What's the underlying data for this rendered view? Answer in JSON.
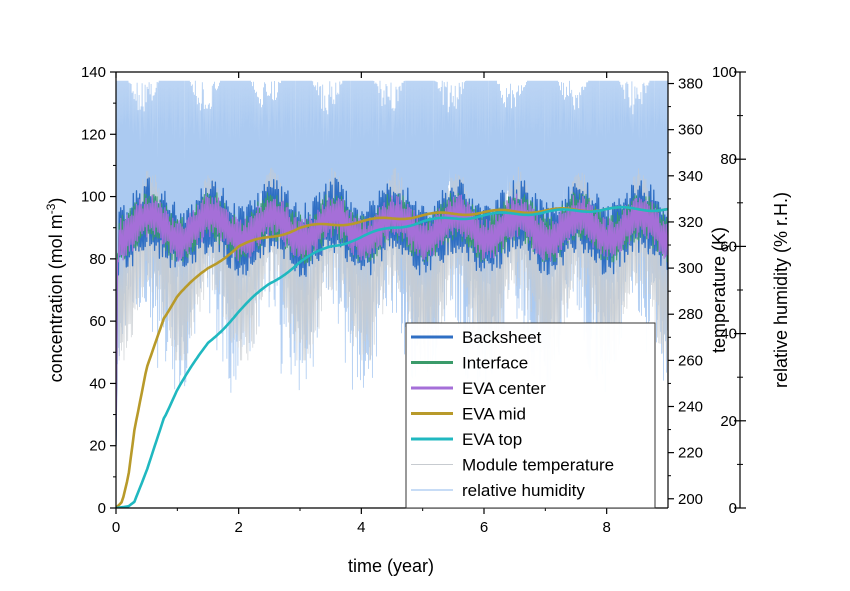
{
  "chart_data": {
    "type": "line",
    "xlabel": "time (year)",
    "ylabel": "concentration (mol m",
    "ylabel_sup": "-3",
    "ylabel_close": ")",
    "y2label": "temperature (K)",
    "y3label": "relative humidity (% r.H.)",
    "xlim": [
      0,
      9
    ],
    "ylim": [
      0,
      140
    ],
    "y2lim": [
      196,
      385
    ],
    "y3lim": [
      0,
      100
    ],
    "x_ticks": [
      "0",
      "2",
      "4",
      "6",
      "8"
    ],
    "y_ticks": [
      "0",
      "20",
      "40",
      "60",
      "80",
      "100",
      "120",
      "140"
    ],
    "y2_ticks": [
      "200",
      "220",
      "240",
      "260",
      "280",
      "300",
      "320",
      "340",
      "360",
      "380"
    ],
    "y3_ticks": [
      "0",
      "20",
      "40",
      "60",
      "80",
      "100"
    ],
    "legend_position": "bottom-right",
    "series": [
      {
        "name": "Backsheet",
        "color": "#2f6fc4",
        "axis": "concentration",
        "mean": [
          [
            0,
            90
          ],
          [
            9,
            90
          ]
        ],
        "amplitude": 12
      },
      {
        "name": "Interface",
        "color": "#3a9b6a",
        "axis": "concentration",
        "mean": [
          [
            0,
            90
          ],
          [
            9,
            90
          ]
        ],
        "amplitude": 8
      },
      {
        "name": "EVA center",
        "color": "#a56fd8",
        "axis": "concentration",
        "mean": [
          [
            0,
            90
          ],
          [
            9,
            90
          ]
        ],
        "amplitude": 7
      },
      {
        "name": "EVA mid",
        "color": "#b89a2a",
        "axis": "concentration",
        "x": [
          0,
          0.1,
          0.2,
          0.3,
          0.5,
          0.8,
          1.0,
          1.5,
          2.0,
          2.5,
          3.0,
          3.5,
          4.0,
          4.5,
          5.0,
          6.0,
          7.0,
          8.0,
          9.0
        ],
        "values": [
          0,
          2,
          10,
          25,
          45,
          62,
          68,
          77,
          84,
          87,
          90,
          91,
          92,
          93,
          94,
          95,
          95.5,
          96,
          96
        ]
      },
      {
        "name": "EVA top",
        "color": "#20b8c0",
        "axis": "concentration",
        "x": [
          0,
          0.2,
          0.3,
          0.5,
          0.8,
          1.0,
          1.5,
          2.0,
          2.5,
          3.0,
          3.5,
          4.0,
          4.5,
          5.0,
          6.0,
          7.0,
          8.0,
          9.0
        ],
        "values": [
          0,
          0.5,
          2,
          12,
          30,
          38,
          53,
          63,
          72,
          79,
          84,
          87,
          90,
          92,
          94,
          95,
          96,
          96
        ]
      },
      {
        "name": "Module temperature",
        "color": "#c7cbd0",
        "axis": "temperature",
        "range": [
          260,
          345
        ]
      },
      {
        "name": "relative humidity",
        "color": "#8fb8ec",
        "axis": "relative humidity",
        "range": [
          20,
          100
        ]
      }
    ]
  }
}
